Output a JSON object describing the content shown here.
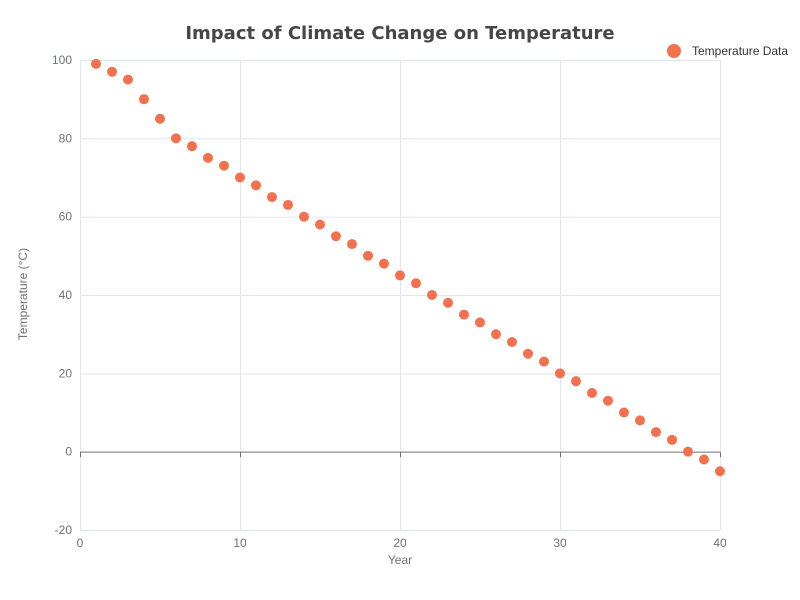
{
  "chart_data": {
    "type": "scatter",
    "title": "Impact of Climate Change on Temperature",
    "xlabel": "Year",
    "ylabel": "Temperature (°C)",
    "xlim": [
      0,
      40
    ],
    "ylim": [
      -20,
      100
    ],
    "x_ticks": [
      0,
      10,
      20,
      30,
      40
    ],
    "y_ticks": [
      -20,
      0,
      20,
      40,
      60,
      80,
      100
    ],
    "grid": true,
    "legend_position": "top-right",
    "series": [
      {
        "name": "Temperature Data",
        "color": "#f4714f",
        "x": [
          1,
          2,
          3,
          4,
          5,
          6,
          7,
          8,
          9,
          10,
          11,
          12,
          13,
          14,
          15,
          16,
          17,
          18,
          19,
          20,
          21,
          22,
          23,
          24,
          25,
          26,
          27,
          28,
          29,
          30,
          31,
          32,
          33,
          34,
          35,
          36,
          37,
          38,
          39,
          40
        ],
        "y": [
          99,
          97,
          95,
          90,
          85,
          80,
          78,
          75,
          73,
          70,
          68,
          65,
          63,
          60,
          58,
          55,
          53,
          50,
          48,
          45,
          43,
          40,
          38,
          35,
          33,
          30,
          28,
          25,
          23,
          20,
          18,
          15,
          13,
          10,
          8,
          5,
          3,
          0,
          -2,
          -5
        ]
      }
    ]
  },
  "colors": {
    "grid": "#e0e6f1",
    "axis": "#6e7079"
  }
}
